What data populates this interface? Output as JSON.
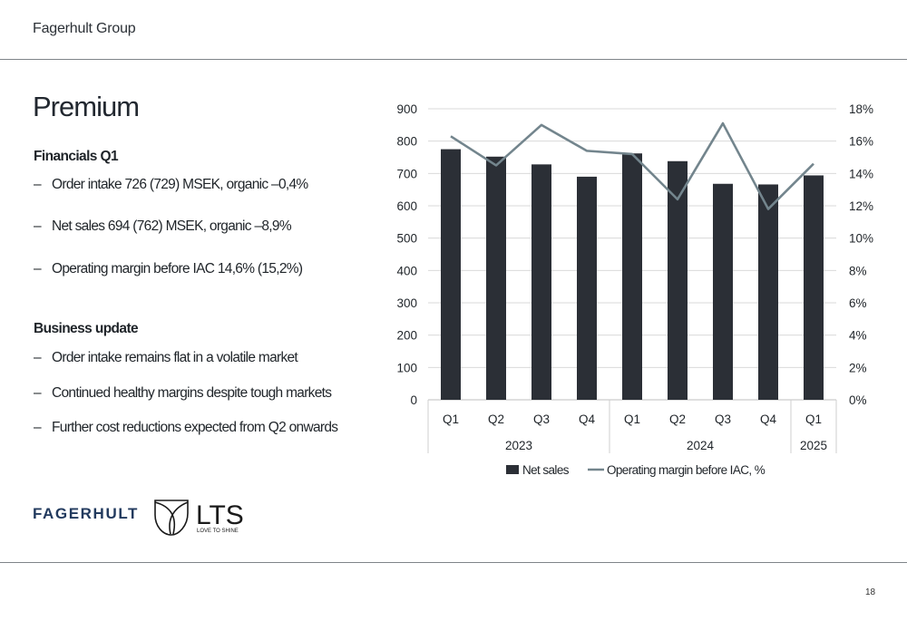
{
  "header": {
    "title": "Fagerhult Group"
  },
  "page": {
    "title": "Premium",
    "number": "18"
  },
  "financials": {
    "heading": "Financials Q1",
    "bullets": [
      "Order intake 726 (729) MSEK, organic –0,4%",
      "Net sales 694 (762) MSEK, organic –8,9%",
      "Operating margin before IAC 14,6% (15,2%)"
    ]
  },
  "business": {
    "heading": "Business update",
    "bullets": [
      "Order intake remains flat in a volatile market",
      "Continued healthy margins despite tough markets",
      "Further cost reductions expected from Q2 onwards"
    ]
  },
  "bullet_glyph": "–",
  "logos": {
    "fagerhult": "FAGERHULT",
    "lts_name": "LTS",
    "lts_tagline": "LOVE TO SHINE"
  },
  "colors": {
    "bar": "#2b2f36",
    "line": "#73858d",
    "grid": "#d9d9d9",
    "text": "#1f2429"
  },
  "chart_data": {
    "type": "bar",
    "categories": [
      "Q1",
      "Q2",
      "Q3",
      "Q4",
      "Q1",
      "Q2",
      "Q3",
      "Q4",
      "Q1"
    ],
    "groups": [
      {
        "label": "2023",
        "count": 4
      },
      {
        "label": "2024",
        "count": 4
      },
      {
        "label": "2025",
        "count": 1
      }
    ],
    "series": [
      {
        "name": "Net sales",
        "type": "bar",
        "axis": "left",
        "values": [
          775,
          752,
          728,
          690,
          762,
          738,
          668,
          666,
          694
        ]
      },
      {
        "name": "Operating margin before IAC, %",
        "type": "line",
        "axis": "right",
        "values": [
          16.3,
          14.5,
          17.0,
          15.4,
          15.2,
          12.4,
          17.1,
          11.8,
          14.6
        ]
      }
    ],
    "yleft": {
      "min": 0,
      "max": 900,
      "ticks": [
        "0",
        "100",
        "200",
        "300",
        "400",
        "500",
        "600",
        "700",
        "800",
        "900"
      ]
    },
    "yright": {
      "min": 0,
      "max": 18,
      "ticks": [
        "0%",
        "2%",
        "4%",
        "6%",
        "8%",
        "10%",
        "12%",
        "14%",
        "16%",
        "18%"
      ]
    },
    "grid": true,
    "legend": "bottom-center"
  }
}
